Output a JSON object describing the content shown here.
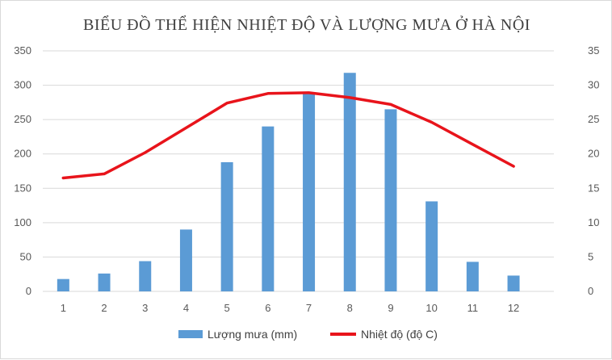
{
  "chart_data": {
    "type": "bar",
    "title": "BIỂU ĐỒ  THỂ HIỆN NHIỆT ĐỘ VÀ LƯỢNG MƯA Ở HÀ NỘI",
    "categories": [
      "1",
      "2",
      "3",
      "4",
      "5",
      "6",
      "7",
      "8",
      "9",
      "10",
      "11",
      "12"
    ],
    "series": [
      {
        "name": "Lượng mưa (mm)",
        "type": "bar",
        "axis": "left",
        "color": "#5b9bd5",
        "values": [
          18,
          26,
          44,
          90,
          188,
          240,
          288,
          318,
          265,
          131,
          43,
          23
        ]
      },
      {
        "name": "Nhiệt độ (độ C)",
        "type": "line",
        "axis": "right",
        "color": "#e8141b",
        "values": [
          16.5,
          17.1,
          20.2,
          23.8,
          27.4,
          28.8,
          28.9,
          28.2,
          27.2,
          24.6,
          21.4,
          18.2
        ]
      }
    ],
    "y_left": {
      "min": 0,
      "max": 350,
      "ticks": [
        "0",
        "50",
        "100",
        "150",
        "200",
        "250",
        "300",
        "350"
      ]
    },
    "y_right": {
      "min": 0,
      "max": 35,
      "ticks": [
        "0",
        "5",
        "10",
        "15",
        "20",
        "25",
        "30",
        "35"
      ]
    },
    "grid": true,
    "legend_position": "bottom"
  }
}
